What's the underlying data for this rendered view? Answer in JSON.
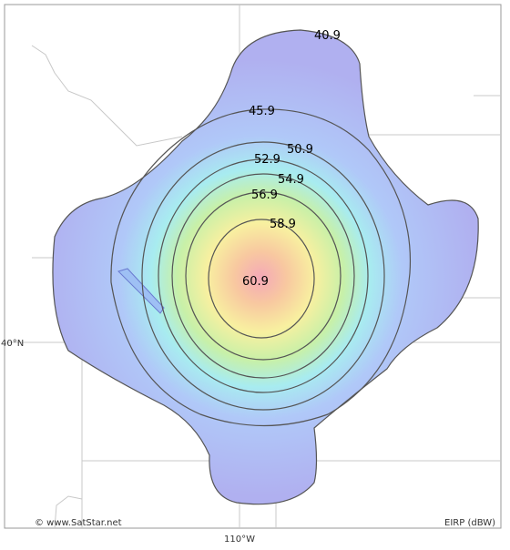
{
  "map": {
    "contours": [
      {
        "label": "40.9"
      },
      {
        "label": "45.9"
      },
      {
        "label": "50.9"
      },
      {
        "label": "52.9"
      },
      {
        "label": "54.9"
      },
      {
        "label": "56.9"
      },
      {
        "label": "58.9"
      },
      {
        "label": "60.9"
      }
    ],
    "latitude_label": "40°N",
    "longitude_label": "110°W",
    "credit": "© www.SatStar.net",
    "legend": "EIRP (dBW)"
  }
}
